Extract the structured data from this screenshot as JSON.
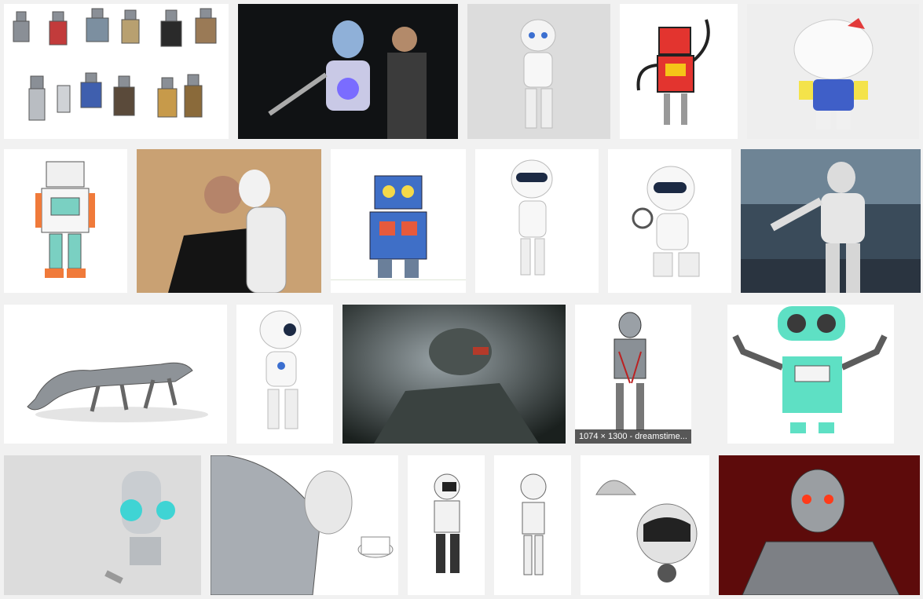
{
  "results": {
    "hover_overlay": "1074 × 1300 - dreamstime...",
    "tiles": [
      {
        "subject": "collection of vintage tin robots"
      },
      {
        "subject": "humanoid robot with man"
      },
      {
        "subject": "white humanoid robot waving"
      },
      {
        "subject": "red cartoon robot"
      },
      {
        "subject": "robotic cat toy"
      },
      {
        "subject": "cartoon tin robot drawing"
      },
      {
        "subject": "man with white female robot"
      },
      {
        "subject": "blue toy robot"
      },
      {
        "subject": "white robot waving"
      },
      {
        "subject": "white robot with magnifying glass"
      },
      {
        "subject": "large white robot at expo"
      },
      {
        "subject": "mechanical lizard robot"
      },
      {
        "subject": "white robot walking"
      },
      {
        "subject": "armored suit close-up"
      },
      {
        "subject": "chrome skeleton robot"
      },
      {
        "subject": "flat teal cartoon robot"
      },
      {
        "subject": "silver robot with teal eyes"
      },
      {
        "subject": "cyborg holding coffee cup"
      },
      {
        "subject": "small white humanoid robot"
      },
      {
        "subject": "small white humanoid robot standing"
      },
      {
        "subject": "robot with serving cloche"
      },
      {
        "subject": "terminator endoskeleton"
      }
    ]
  },
  "colors": {
    "page_bg": "#f1f1f1",
    "overlay_bg": "#282828",
    "teal": "#5ee0c4"
  }
}
